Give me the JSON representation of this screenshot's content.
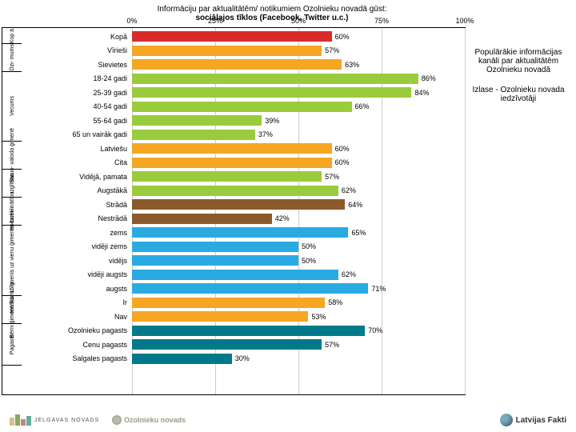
{
  "header": {
    "line1": "Informāciju par aktualitātēm/ notikumiem Ozolnieku novadā gūst:",
    "line2": "sociālajos tīklos (Facebook, Twitter u.c.)"
  },
  "axis": {
    "min": 0,
    "max": 100,
    "ticks": [
      "0%",
      "25%",
      "50%",
      "75%",
      "100%"
    ],
    "tick_pct": [
      0,
      25,
      50,
      75,
      100
    ]
  },
  "colors": {
    "grid": "#cccccc",
    "red": "#d92b2b",
    "gold": "#f5a623",
    "green": "#9acb3c",
    "brown": "#8b5a2b",
    "cyan": "#29abe2",
    "teal": "#007a8a"
  },
  "side": {
    "p1": "Populārākie informācijas kanāli par aktualitātēm Ozolnieku novadā",
    "p2": "Izlase - Ozolnieku novada iedzīvotāji"
  },
  "groups": [
    {
      "label": "Kop\nā",
      "rows": [
        {
          "label": "Kopā",
          "value": 60,
          "color": "red"
        }
      ]
    },
    {
      "label": "Dzi-\nmums",
      "rows": [
        {
          "label": "Vīrieši",
          "value": 57,
          "color": "gold"
        },
        {
          "label": "Sievietes",
          "value": 63,
          "color": "gold"
        }
      ]
    },
    {
      "label": "Vecums",
      "rows": [
        {
          "label": "18-24 gadi",
          "value": 86,
          "color": "green"
        },
        {
          "label": "25-39 gadi",
          "value": 84,
          "color": "green"
        },
        {
          "label": "40-54 gadi",
          "value": 66,
          "color": "green"
        },
        {
          "label": "55-64 gadi",
          "value": 39,
          "color": "green"
        },
        {
          "label": "65 un vairāk gadi",
          "value": 37,
          "color": "green"
        }
      ]
    },
    {
      "label": "Sarun-\nvaloda\nģimenē",
      "rows": [
        {
          "label": "Latviešu",
          "value": 60,
          "color": "gold"
        },
        {
          "label": "Cita",
          "value": 60,
          "color": "gold"
        }
      ]
    },
    {
      "label": "izglītība",
      "rows": [
        {
          "label": "Vidējā, pamata",
          "value": 57,
          "color": "green"
        },
        {
          "label": "Augstākā",
          "value": 62,
          "color": "green"
        }
      ]
    },
    {
      "label": "Nodarbi-\nnātība",
      "rows": [
        {
          "label": "Strādā",
          "value": 64,
          "color": "brown"
        },
        {
          "label": "Nestrādā",
          "value": 42,
          "color": "brown"
        }
      ]
    },
    {
      "label": "Ienākumu līmenis uz\nvienu ģimenes locekli",
      "rows": [
        {
          "label": "zems",
          "value": 65,
          "color": "cyan"
        },
        {
          "label": "vidēji zems",
          "value": 50,
          "color": "cyan"
        },
        {
          "label": "vidējs",
          "value": 50,
          "color": "cyan"
        },
        {
          "label": "vidēji augsts",
          "value": 62,
          "color": "cyan"
        },
        {
          "label": "augsts",
          "value": 71,
          "color": "cyan"
        }
      ]
    },
    {
      "label": "Bērni\nģimenē\nlīdz 15 g.",
      "rows": [
        {
          "label": "Ir",
          "value": 58,
          "color": "gold"
        },
        {
          "label": "Nav",
          "value": 53,
          "color": "gold"
        }
      ]
    },
    {
      "label": "Pagasts",
      "rows": [
        {
          "label": "Ozolnieku pagasts",
          "value": 70,
          "color": "teal"
        },
        {
          "label": "Cenu pagasts",
          "value": 57,
          "color": "teal"
        },
        {
          "label": "Salgales pagasts",
          "value": 30,
          "color": "teal"
        }
      ]
    }
  ],
  "footer": {
    "jelgava": "JELGAVAS NOVADS",
    "ozol": "Ozolnieku novads",
    "lf": "Latvijas Fakti",
    "jelgava_bars": [
      {
        "h": 10,
        "c": "#d4c488"
      },
      {
        "h": 14,
        "c": "#8aa85e"
      },
      {
        "h": 8,
        "c": "#b88"
      },
      {
        "h": 12,
        "c": "#6a9"
      }
    ]
  }
}
